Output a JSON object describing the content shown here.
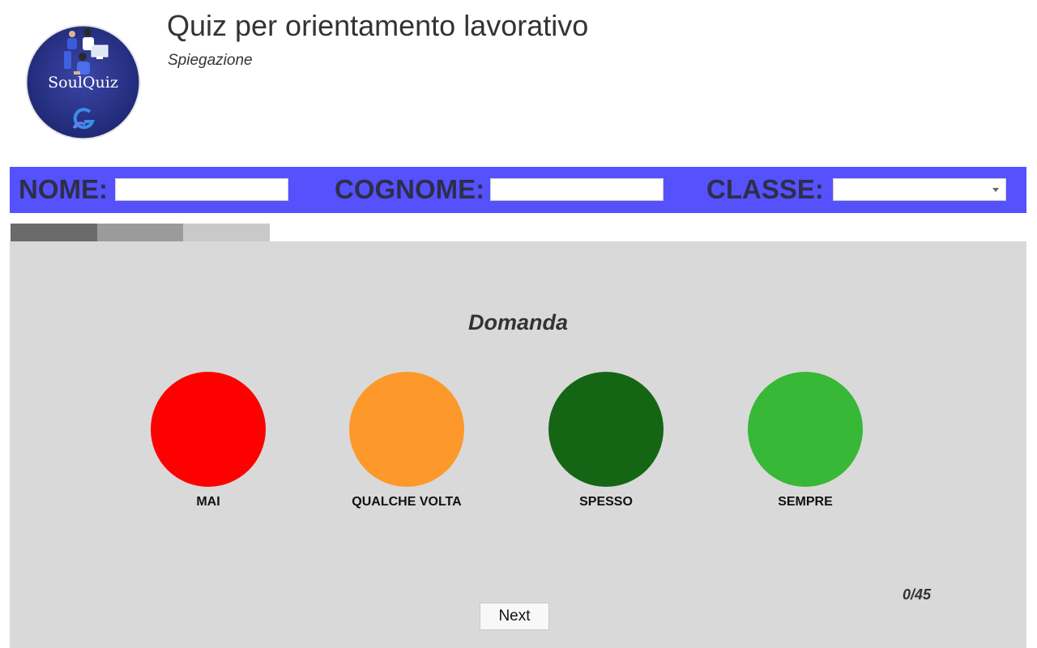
{
  "header": {
    "logo_text": "SoulQuiz",
    "title": "Quiz per orientamento lavorativo",
    "subtitle": "Spiegazione"
  },
  "form": {
    "nome_label": "NOME:",
    "nome_value": "",
    "cognome_label": "COGNOME:",
    "cognome_value": "",
    "classe_label": "CLASSE:",
    "classe_value": ""
  },
  "progress": {
    "segments": 3,
    "colors": [
      "#6b6b6b",
      "#9b9b9b",
      "#c9c9c9"
    ]
  },
  "quiz": {
    "question": "Domanda",
    "options": [
      {
        "label": "MAI",
        "color": "#ff0000"
      },
      {
        "label": "QUALCHE VOLTA",
        "color": "#fd982b"
      },
      {
        "label": "SPESSO",
        "color": "#146614"
      },
      {
        "label": "SEMPRE",
        "color": "#37b837"
      }
    ],
    "counter": "0/45",
    "next_label": "Next"
  },
  "colors": {
    "form_bar": "#5451fd",
    "panel": "#d9d9d9"
  }
}
